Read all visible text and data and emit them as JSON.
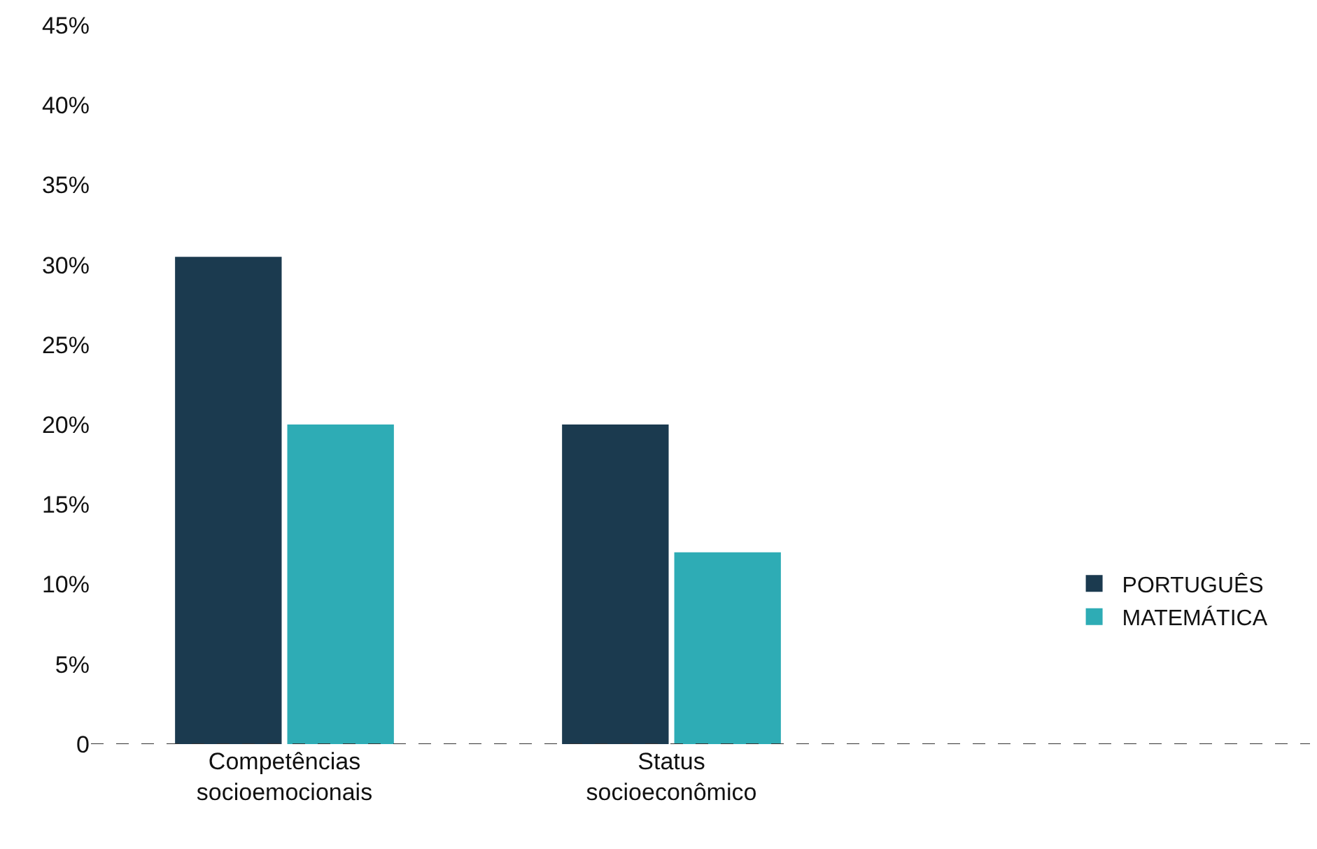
{
  "chart_data": {
    "type": "bar",
    "categories": [
      "Competências\nsocioemocionais",
      "Status\nsocioeconômico"
    ],
    "series": [
      {
        "name": "PORTUGUÊS",
        "color": "#1b3a4f",
        "values": [
          30.5,
          20
        ]
      },
      {
        "name": "MATEMÁTICA",
        "color": "#2eacb5",
        "values": [
          20,
          12
        ]
      }
    ],
    "ylim": [
      0,
      45
    ],
    "yticks": [
      0,
      {
        "value": 5,
        "label": "5%"
      },
      {
        "value": 10,
        "label": "10%"
      },
      {
        "value": 15,
        "label": "15%"
      },
      {
        "value": 20,
        "label": "20%"
      },
      {
        "value": 25,
        "label": "25%"
      },
      {
        "value": 30,
        "label": "30%"
      },
      {
        "value": 35,
        "label": "35%"
      },
      {
        "value": 40,
        "label": "40%"
      },
      {
        "value": 45,
        "label": "45%"
      }
    ],
    "legend": "right"
  }
}
